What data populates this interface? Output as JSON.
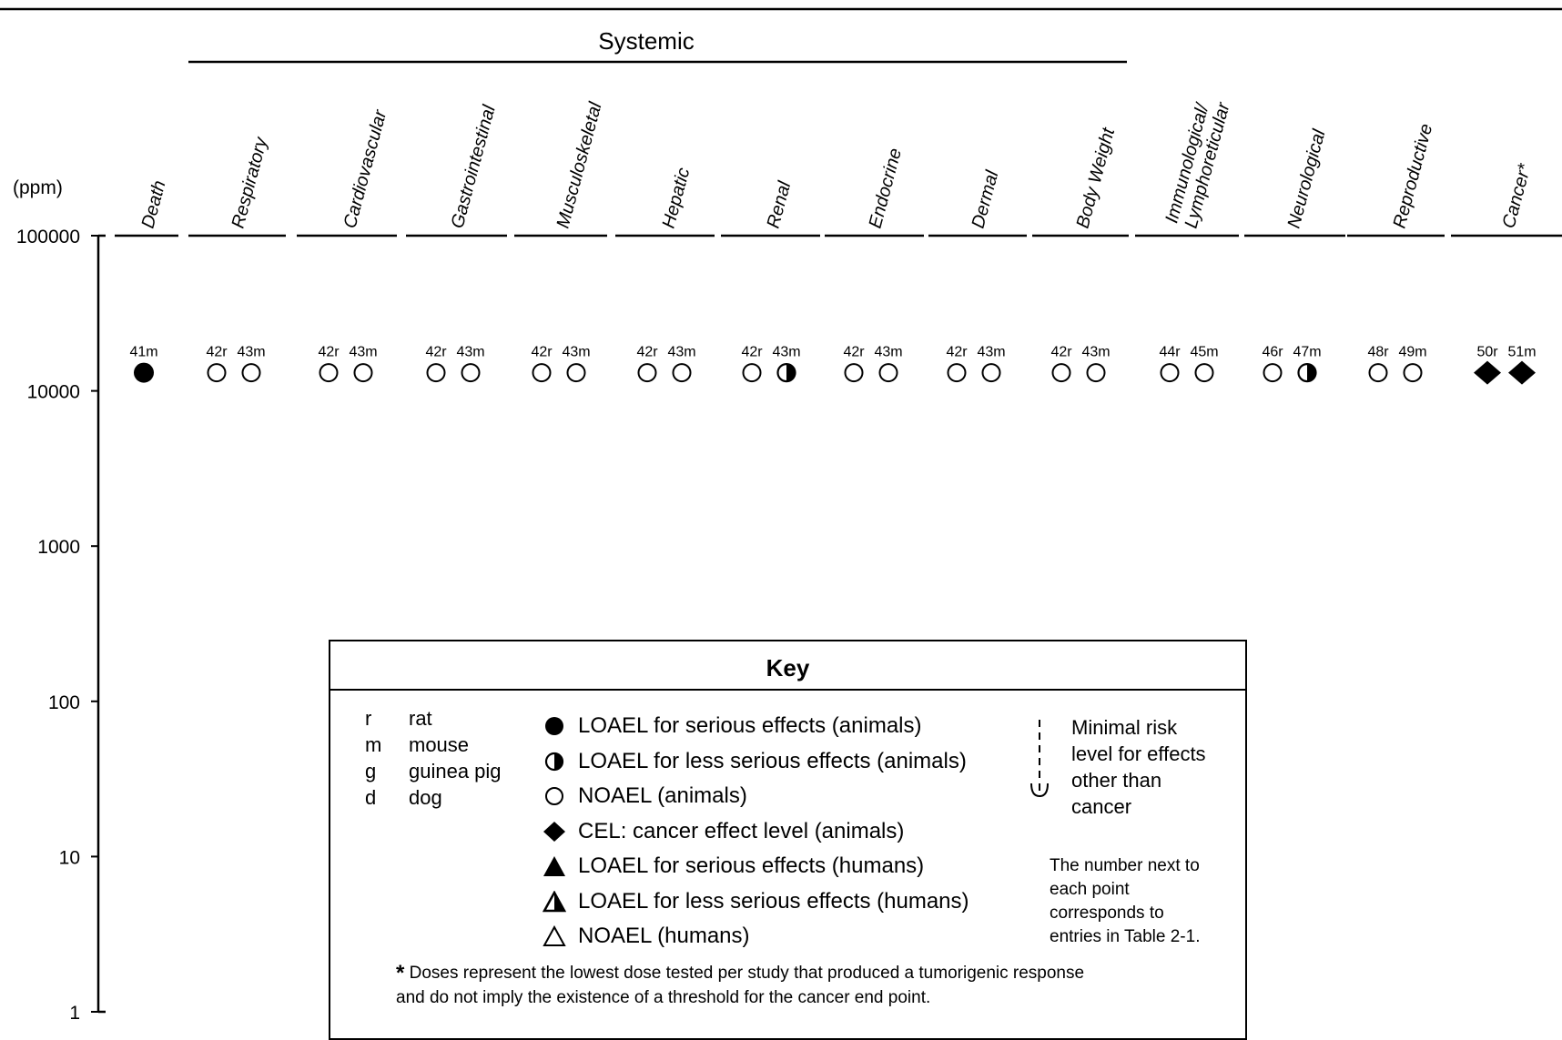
{
  "chart_data": {
    "type": "scatter",
    "title": "",
    "ylabel": "(ppm)",
    "yscale": "log",
    "ylim": [
      1,
      100000
    ],
    "yticks": [
      "100000",
      "10000",
      "1000",
      "100",
      "10",
      "1"
    ],
    "group_label": "Systemic",
    "categories": [
      "Death",
      "Respiratory",
      "Cardiovascular",
      "Gastrointestinal",
      "Musculoskeletal",
      "Hepatic",
      "Renal",
      "Endocrine",
      "Dermal",
      "Body Weight",
      "Immunological/ Lymphoreticular",
      "Neurological",
      "Reproductive",
      "Cancer*"
    ],
    "points": [
      {
        "category": "Death",
        "label": "41m",
        "value": 13100,
        "type": "LOAEL serious animals"
      },
      {
        "category": "Respiratory",
        "label": "42r",
        "value": 13100,
        "type": "NOAEL animals"
      },
      {
        "category": "Respiratory",
        "label": "43m",
        "value": 13100,
        "type": "NOAEL animals"
      },
      {
        "category": "Cardiovascular",
        "label": "42r",
        "value": 13100,
        "type": "NOAEL animals"
      },
      {
        "category": "Cardiovascular",
        "label": "43m",
        "value": 13100,
        "type": "NOAEL animals"
      },
      {
        "category": "Gastrointestinal",
        "label": "42r",
        "value": 13100,
        "type": "NOAEL animals"
      },
      {
        "category": "Gastrointestinal",
        "label": "43m",
        "value": 13100,
        "type": "NOAEL animals"
      },
      {
        "category": "Musculoskeletal",
        "label": "42r",
        "value": 13100,
        "type": "NOAEL animals"
      },
      {
        "category": "Musculoskeletal",
        "label": "43m",
        "value": 13100,
        "type": "NOAEL animals"
      },
      {
        "category": "Hepatic",
        "label": "42r",
        "value": 13100,
        "type": "NOAEL animals"
      },
      {
        "category": "Hepatic",
        "label": "43m",
        "value": 13100,
        "type": "NOAEL animals"
      },
      {
        "category": "Renal",
        "label": "42r",
        "value": 13100,
        "type": "NOAEL animals"
      },
      {
        "category": "Renal",
        "label": "43m",
        "value": 13100,
        "type": "LOAEL less serious animals"
      },
      {
        "category": "Endocrine",
        "label": "42r",
        "value": 13100,
        "type": "NOAEL animals"
      },
      {
        "category": "Endocrine",
        "label": "43m",
        "value": 13100,
        "type": "NOAEL animals"
      },
      {
        "category": "Dermal",
        "label": "42r",
        "value": 13100,
        "type": "NOAEL animals"
      },
      {
        "category": "Dermal",
        "label": "43m",
        "value": 13100,
        "type": "NOAEL animals"
      },
      {
        "category": "Body Weight",
        "label": "42r",
        "value": 13100,
        "type": "NOAEL animals"
      },
      {
        "category": "Body Weight",
        "label": "43m",
        "value": 13100,
        "type": "NOAEL animals"
      },
      {
        "category": "Immunological/ Lymphoreticular",
        "label": "44r",
        "value": 13100,
        "type": "NOAEL animals"
      },
      {
        "category": "Immunological/ Lymphoreticular",
        "label": "45m",
        "value": 13100,
        "type": "NOAEL animals"
      },
      {
        "category": "Neurological",
        "label": "46r",
        "value": 13100,
        "type": "NOAEL animals"
      },
      {
        "category": "Neurological",
        "label": "47m",
        "value": 13100,
        "type": "LOAEL less serious animals"
      },
      {
        "category": "Reproductive",
        "label": "48r",
        "value": 13100,
        "type": "NOAEL animals"
      },
      {
        "category": "Reproductive",
        "label": "49m",
        "value": 13100,
        "type": "NOAEL animals"
      },
      {
        "category": "Cancer*",
        "label": "50r",
        "value": 13100,
        "type": "CEL animals"
      },
      {
        "category": "Cancer*",
        "label": "51m",
        "value": 13100,
        "type": "CEL animals"
      }
    ],
    "grid": false,
    "legend": "bottom-center"
  },
  "key": {
    "title": "Key",
    "species": [
      {
        "code": "r",
        "name": "rat"
      },
      {
        "code": "m",
        "name": "mouse"
      },
      {
        "code": "g",
        "name": "guinea pig"
      },
      {
        "code": "d",
        "name": "dog"
      }
    ],
    "symbols": [
      {
        "icon": "filled-circle-icon",
        "label": "LOAEL for serious effects (animals)"
      },
      {
        "icon": "half-filled-circle-icon",
        "label": "LOAEL for less serious effects (animals)"
      },
      {
        "icon": "open-circle-icon",
        "label": "NOAEL (animals)"
      },
      {
        "icon": "filled-diamond-icon",
        "label": "CEL: cancer effect level (animals)"
      },
      {
        "icon": "filled-triangle-icon",
        "label": "LOAEL for serious effects (humans)"
      },
      {
        "icon": "half-filled-triangle-icon",
        "label": "LOAEL for less serious effects (humans)"
      },
      {
        "icon": "open-triangle-icon",
        "label": "NOAEL (humans)"
      }
    ],
    "mrl_lines": [
      "Minimal risk",
      "level for effects",
      "other than",
      "cancer"
    ],
    "note_lines": [
      "The number next to",
      "each point",
      "corresponds to",
      "entries in Table 2-1."
    ],
    "footnote_star": "*",
    "footnote_lines": [
      "Doses represent the lowest dose tested per study that produced a tumorigenic response",
      "and do not imply the existence of a threshold for the cancer end point."
    ]
  }
}
